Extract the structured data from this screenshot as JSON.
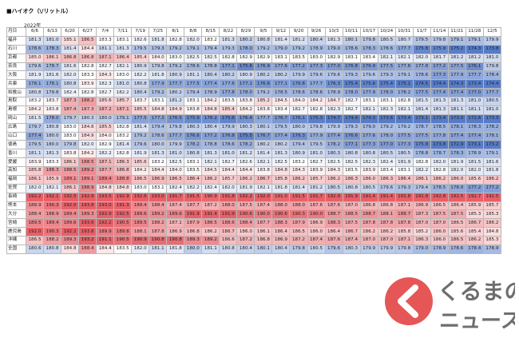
{
  "header": {
    "title": "■ハイオク（\\/リットル）",
    "year_label": "2022年"
  },
  "table": {
    "corner": "月日",
    "columns": [
      "6/6",
      "6/13",
      "6/20",
      "6/27",
      "7/4",
      "7/11",
      "7/19",
      "7/25",
      "8/1",
      "8/8",
      "8/15",
      "8/22",
      "8/29",
      "9/5",
      "9/12",
      "9/20",
      "9/26",
      "10/3",
      "10/11",
      "10/17",
      "10/24",
      "10/31",
      "11/7",
      "11/14",
      "11/21",
      "11/28",
      "12/5"
    ],
    "rows": [
      {
        "name": "福井",
        "values": [
          "181.3",
          "181.0",
          "185.1",
          "186.5",
          "183.3",
          "183.1",
          "182.6",
          "181.8",
          "182.8",
          "182.0",
          "183.2",
          "181.3",
          "180.2",
          "180.8",
          "181.4",
          "181.2",
          "180.4",
          "181.3",
          "180.1",
          "179.8",
          "180.5",
          "180.7",
          "179.5",
          "179.8",
          "179.1",
          "179.1",
          "179.9"
        ]
      },
      {
        "name": "石川",
        "values": [
          "178.6",
          "178.3",
          "181.4",
          "184.4",
          "181.1",
          "181.3",
          "179.5",
          "179.3",
          "179.2",
          "179.1",
          "179.4",
          "179.3",
          "178.0",
          "179.2",
          "179.0",
          "179.2",
          "178.9",
          "179.0",
          "178.6",
          "178.3",
          "178.6",
          "177.7",
          "175.8",
          "175.9",
          "175.2",
          "174.3",
          "173.8"
        ]
      },
      {
        "name": "京都",
        "values": [
          "185.0",
          "186.1",
          "186.8",
          "186.8",
          "187.1",
          "186.4",
          "185.4",
          "184.0",
          "183.0",
          "182.5",
          "182.5",
          "182.8",
          "182.9",
          "182.9",
          "183.1",
          "183.5",
          "183.0",
          "182.9",
          "183.1",
          "183.4",
          "182.1",
          "182.1",
          "182.0",
          "181.7",
          "181.2",
          "181.2",
          "181.0"
        ]
      },
      {
        "name": "奈良",
        "values": [
          "179.6",
          "178.7",
          "181.6",
          "182.8",
          "182.7",
          "182.1",
          "180.9",
          "179.8",
          "179.2",
          "178.6",
          "178.8",
          "177.1",
          "175.8",
          "176.9",
          "177.6",
          "177.2",
          "177.3",
          "177.0",
          "176.8",
          "176.9",
          "177.5",
          "177.8",
          "177.8",
          "177.2",
          "177.5",
          "176.1",
          "179.8"
        ]
      },
      {
        "name": "大阪",
        "values": [
          "181.9",
          "181.6",
          "182.0",
          "183.3",
          "184.3",
          "183.0",
          "182.2",
          "181.8",
          "180.9",
          "181.1",
          "180.4",
          "180.2",
          "180.9",
          "180.2",
          "180.2",
          "179.9",
          "179.6",
          "179.6",
          "179.3",
          "179.6",
          "179.3",
          "179.1",
          "178.6",
          "177.3",
          "177.9",
          "177.7",
          "178.4"
        ]
      },
      {
        "name": "兵庫",
        "values": [
          "178.1",
          "178.1",
          "180.8",
          "183.9",
          "182.3",
          "181.0",
          "180.8",
          "177.9",
          "177.7",
          "177.5",
          "177.4",
          "177.6",
          "177.1",
          "176.6",
          "177.1",
          "176.8",
          "177.7",
          "176.3",
          "175.4",
          "175.6",
          "175.4",
          "175.1",
          "174.5",
          "174.4",
          "174.3",
          "173.4",
          "174.4"
        ]
      },
      {
        "name": "和歌山",
        "values": [
          "180.8",
          "179.8",
          "182.4",
          "182.8",
          "182.7",
          "182.2",
          "180.4",
          "179.2",
          "180.2",
          "179.4",
          "178.9",
          "177.8",
          "178.0",
          "179.2",
          "178.5",
          "178.6",
          "178.6",
          "178.9",
          "178.0",
          "177.9",
          "178.0",
          "178.2",
          "177.5",
          "177.4",
          "177.4",
          "177.0",
          "177.7"
        ]
      },
      {
        "name": "鳥取",
        "values": [
          "183.2",
          "183.7",
          "187.3",
          "188.2",
          "185.6",
          "185.7",
          "183.7",
          "183.1",
          "181.2",
          "183.1",
          "184.2",
          "183.5",
          "183.8",
          "185.2",
          "184.5",
          "184.0",
          "184.2",
          "184.7",
          "182.7",
          "183.1",
          "183.1",
          "182.8",
          "181.5",
          "181.3",
          "181.3",
          "181.0",
          "180.5"
        ]
      },
      {
        "name": "島根",
        "values": [
          "184.2",
          "183.8",
          "187.4",
          "187.3",
          "187.2",
          "187.1",
          "185.5",
          "184.8",
          "184.9",
          "183.8",
          "184.8",
          "185.4",
          "184.2",
          "183.8",
          "183.4",
          "182.7",
          "182.8",
          "182.3",
          "182.7",
          "182.1",
          "182.3",
          "182.1",
          "181.4",
          "181.3",
          "181.1",
          "181.1",
          "181.0"
        ]
      },
      {
        "name": "岡山",
        "values": [
          "181.5",
          "178.0",
          "179.7",
          "180.3",
          "180.0",
          "179.1",
          "177.5",
          "177.3",
          "176.5",
          "175.9",
          "176.2",
          "175.6",
          "176.4",
          "177.7",
          "176.7",
          "176.1",
          "175.3",
          "174.7",
          "174.4",
          "174.3",
          "173.6",
          "173.4",
          "173.1",
          "173.4",
          "173.0",
          "172.6",
          "173.3"
        ]
      },
      {
        "name": "広島",
        "values": [
          "179.7",
          "180.8",
          "183.0",
          "184.8",
          "185.5",
          "182.8",
          "181.4",
          "179.4",
          "179.8",
          "180.3",
          "180.4",
          "179.9",
          "180.3",
          "180.1",
          "179.5",
          "180.0",
          "179.8",
          "179.9",
          "179.3",
          "179.0",
          "179.2",
          "179.2",
          "178.7",
          "178.5",
          "178.1",
          "178.3",
          "178.2"
        ]
      },
      {
        "name": "山口",
        "values": [
          "177.4",
          "180.0",
          "183.0",
          "184.9",
          "184.0",
          "183.2",
          "179.2",
          "178.6",
          "177.7",
          "176.6",
          "177.2",
          "176.8",
          "175.5",
          "176.7",
          "177.4",
          "176.3",
          "177.9",
          "177.4",
          "176.6",
          "177.6",
          "178.0",
          "177.5",
          "177.5",
          "177.8",
          "177.4",
          "177.4",
          "178.1"
        ]
      },
      {
        "name": "徳島",
        "values": [
          "179.5",
          "180.0",
          "179.8",
          "182.0",
          "182.9",
          "181.4",
          "179.6",
          "180.0",
          "179.9",
          "178.2",
          "178.8",
          "178.6",
          "178.2",
          "180.2",
          "180.2",
          "179.4",
          "179.5",
          "178.2",
          "177.1",
          "177.3",
          "177.0",
          "177.3",
          "175.8",
          "173.8",
          "172.9",
          "173.1",
          "173.2"
        ]
      },
      {
        "name": "香川",
        "values": [
          "181.1",
          "181.3",
          "183.8",
          "184.2",
          "182.2",
          "182.8",
          "181.9",
          "181.3",
          "181.0",
          "180.8",
          "181.3",
          "181.0",
          "181.2",
          "181.4",
          "181.3",
          "180.9",
          "181.0",
          "180.3",
          "180.8",
          "180.8",
          "180.5",
          "180.5",
          "178.8",
          "178.7",
          "178.3",
          "178.9",
          "179.1"
        ]
      },
      {
        "name": "愛媛",
        "values": [
          "183.9",
          "183.3",
          "186.1",
          "188.5",
          "187.1",
          "186.3",
          "185.6",
          "183.2",
          "182.5",
          "183.1",
          "182.1",
          "182.7",
          "182.6",
          "182.1",
          "182.5",
          "183.2",
          "182.7",
          "182.5",
          "182.5",
          "182.3",
          "182.4",
          "181.9",
          "182.8",
          "182.0",
          "181.9",
          "181.5",
          "181.6"
        ]
      },
      {
        "name": "高知",
        "values": [
          "185.8",
          "188.3",
          "188.5",
          "189.2",
          "187.7",
          "186.8",
          "184.2",
          "184.4",
          "184.0",
          "183.5",
          "184.5",
          "184.4",
          "184.4",
          "183.8",
          "184.8",
          "184.3",
          "183.9",
          "184.3",
          "183.5",
          "183.9",
          "183.4",
          "183.1",
          "182.2",
          "182.8",
          "182.0",
          "182.0",
          "181.8"
        ]
      },
      {
        "name": "福岡",
        "values": [
          "186.1",
          "185.9",
          "189.1",
          "189.1",
          "189.4",
          "188.8",
          "186.5",
          "186.9",
          "186.5",
          "186.4",
          "186.2",
          "185.7",
          "186.2",
          "186.7",
          "185.8",
          "186.2",
          "185.7",
          "186.2",
          "186.3",
          "186.0",
          "186.3",
          "186.4",
          "186.1",
          "186.2",
          "186.0",
          "185.6",
          "186.2"
        ]
      },
      {
        "name": "佐賀",
        "values": [
          "182.0",
          "182.1",
          "186.1",
          "188.9",
          "184.8",
          "184.8",
          "183.0",
          "183.1",
          "182.4",
          "182.2",
          "182.4",
          "182.0",
          "181.9",
          "182.1",
          "181.8",
          "181.4",
          "181.2",
          "180.5",
          "180.8",
          "180.5",
          "179.6",
          "179.3",
          "179.4",
          "178.5",
          "178.0",
          "177.2",
          "177.2"
        ]
      },
      {
        "name": "長崎",
        "values": [
          "192.2",
          "192.1",
          "192.5",
          "192.9",
          "193.5",
          "192.9",
          "192.6",
          "193.0",
          "191.7",
          "191.5",
          "190.9",
          "191.8",
          "192.2",
          "192.0",
          "191.0",
          "191.5",
          "191.7",
          "192.9",
          "191.9",
          "191.4",
          "191.4",
          "191.8",
          "191.8",
          "192.8",
          "192.5",
          "192.7",
          "192.5"
        ]
      },
      {
        "name": "熊本",
        "values": [
          "188.9",
          "190.3",
          "192.0",
          "193.8",
          "193.0",
          "191.3",
          "189.4",
          "188.4",
          "187.4",
          "187.7",
          "187.2",
          "188.0",
          "187.5",
          "187.4",
          "188.0",
          "188.0",
          "187.6",
          "187.6",
          "187.0",
          "186.8",
          "186.8",
          "187.1",
          "186.9",
          "186.5",
          "186.4",
          "185.9",
          "185.7"
        ]
      },
      {
        "name": "大分",
        "values": [
          "188.4",
          "188.9",
          "189.4",
          "189.3",
          "192.9",
          "192.5",
          "189.6",
          "189.2",
          "189.6",
          "191.9",
          "191.4",
          "191.9",
          "190.6",
          "190.0",
          "190.6",
          "190.3",
          "190.0",
          "188.7",
          "188.5",
          "188.7",
          "188.1",
          "188.7",
          "187.3",
          "187.5",
          "187.5",
          "185.3",
          "185.3"
        ]
      },
      {
        "name": "宮崎",
        "values": [
          "189.5",
          "189.4",
          "189.6",
          "193.6",
          "192.2",
          "190.5",
          "189.5",
          "188.2",
          "187.1",
          "187.9",
          "188.5",
          "188.6",
          "188.4",
          "187.7",
          "188.3",
          "187.9",
          "186.9",
          "188.3",
          "187.5",
          "187.8",
          "187.8",
          "187.8",
          "187.0",
          "187.0",
          "186.5",
          "186.7",
          "186.2"
        ]
      },
      {
        "name": "鹿児島",
        "values": [
          "192.0",
          "190.3",
          "192.2",
          "193.8",
          "189.9",
          "189.8",
          "188.1",
          "187.8",
          "186.9",
          "186.8",
          "186.2",
          "186.7",
          "186.0",
          "186.1",
          "186.4",
          "186.5",
          "186.0",
          "186.4",
          "186.7",
          "186.2",
          "186.2",
          "185.8",
          "185.2",
          "186.0",
          "185.6",
          "185.4",
          "184.8"
        ]
      },
      {
        "name": "沖縄",
        "values": [
          "186.5",
          "188.2",
          "189.3",
          "193.2",
          "191.1",
          "190.5",
          "190.9",
          "190.8",
          "190.8",
          "189.3",
          "189.2",
          "186.6",
          "187.2",
          "186.8",
          "186.9",
          "187.2",
          "187.4",
          "187.6",
          "187.4",
          "187.0",
          "187.0",
          "187.1",
          "186.3",
          "186.0",
          "186.5",
          "186.2",
          "185.3"
        ]
      },
      {
        "name": "全国",
        "values": [
          "180.6",
          "180.8",
          "184.8",
          "188.4",
          "184.4",
          "183.5",
          "182.0",
          "181.1",
          "181.8",
          "180.0",
          "181.1",
          "180.8",
          "180.4",
          "180.1",
          "180.4",
          "179.8",
          "180.5",
          "179.6",
          "180.3",
          "179.9",
          "179.9",
          "179.8",
          "179.0",
          "178.9",
          "178.6",
          "178.4",
          "178.9"
        ]
      }
    ]
  },
  "logo": {
    "line1": "くるまの",
    "line2": "ニュース"
  }
}
